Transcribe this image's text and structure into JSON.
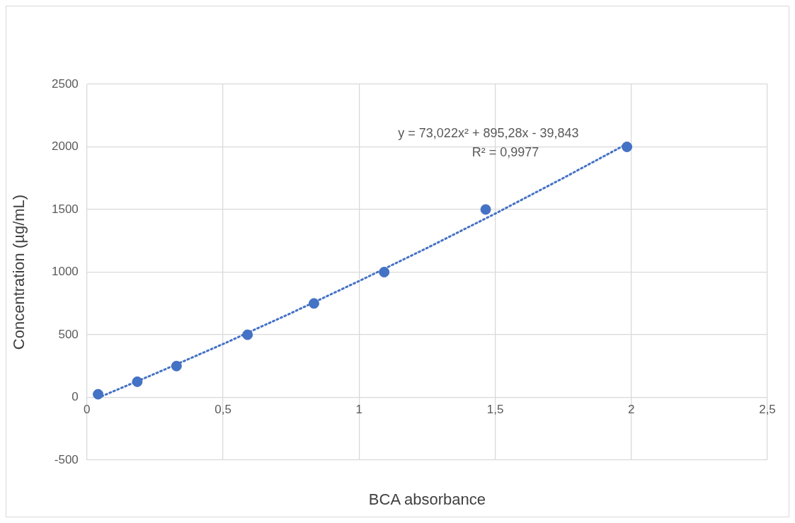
{
  "chart_data": {
    "type": "scatter",
    "xlabel": "BCA absorbance",
    "ylabel": "Concentration (µg/mL)",
    "series": [
      {
        "type": "scatter",
        "color": "#4472c4",
        "x": [
          0.041,
          0.185,
          0.329,
          0.59,
          0.834,
          1.092,
          1.465,
          1.984
        ],
        "values": [
          25,
          125,
          250,
          500,
          750,
          1000,
          1500,
          2000
        ],
        "marker": "circle"
      },
      {
        "type": "line",
        "color": "#4472c4",
        "x": [
          0.04,
          0.25,
          0.5,
          0.75,
          1,
          1.25,
          1.5,
          1.75,
          1.985
        ],
        "values": [
          -4,
          189,
          426,
          673,
          929,
          1193,
          1467,
          1751,
          2025
        ],
        "marker": "none",
        "line_style": "dotted"
      }
    ],
    "xlim": [
      0,
      2.5
    ],
    "xticks": [
      0,
      {
        "value": 0.5,
        "label": "0,5"
      },
      1,
      {
        "value": 1.5,
        "label": "1,5"
      },
      2,
      {
        "value": 2.5,
        "label": "2,5"
      }
    ],
    "ylim": [
      -500,
      2500
    ],
    "yticks": [
      -500,
      0,
      500,
      1000,
      1500,
      2000,
      2500
    ],
    "grid": true,
    "legend": false,
    "annotations": [
      "y = 73,022x² + 895,28x - 39,843",
      "R² = 0,9977"
    ]
  }
}
